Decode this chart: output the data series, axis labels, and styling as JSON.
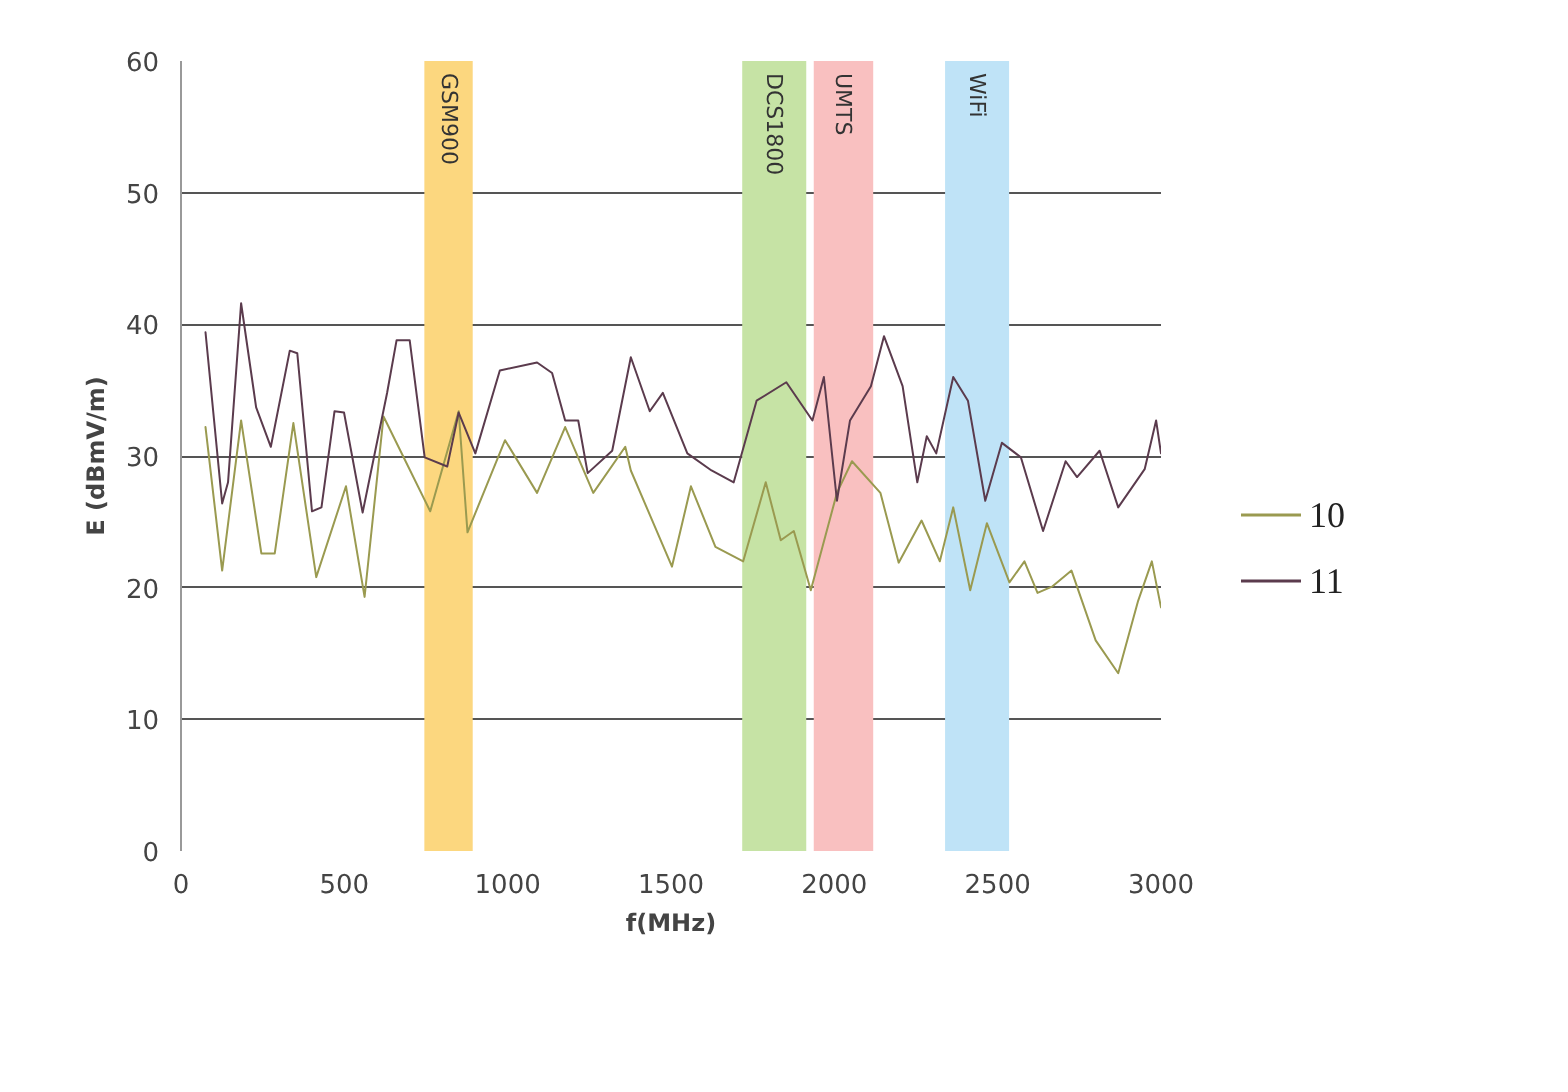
{
  "chart_data": {
    "type": "line",
    "xlabel": "f(MHz)",
    "ylabel": "E (dBmV/m)",
    "series": [
      {
        "name": "10",
        "color": "#9a9a50",
        "x": [
          75,
          126,
          184,
          246,
          287,
          344,
          414,
          505,
          562,
          620,
          763,
          850,
          877,
          992,
          1090,
          1176,
          1262,
          1360,
          1377,
          1503,
          1561,
          1636,
          1721,
          1790,
          1836,
          1876,
          1928,
          2008,
          2054,
          2141,
          2197,
          2267,
          2323,
          2364,
          2416,
          2467,
          2536,
          2582,
          2622,
          2668,
          2726,
          2800,
          2869,
          2930,
          2972,
          3000
        ],
        "values": [
          32.2,
          21.3,
          32.7,
          22.6,
          22.6,
          32.5,
          20.8,
          27.7,
          19.3,
          33,
          25.8,
          33.4,
          24.2,
          31.2,
          27.2,
          32.2,
          27.2,
          30.7,
          28.9,
          21.6,
          27.7,
          23.1,
          22,
          28,
          23.6,
          24.3,
          19.8,
          27.2,
          29.6,
          27.2,
          21.9,
          25.1,
          22,
          26.1,
          19.8,
          24.9,
          20.4,
          22,
          19.6,
          20.1,
          21.3,
          16,
          13.5,
          19,
          22,
          18.5
        ]
      },
      {
        "name": "11",
        "color": "#5b3b4d",
        "x": [
          75,
          126,
          144,
          184,
          230,
          275,
          333,
          356,
          401,
          430,
          470,
          499,
          556,
          631,
          660,
          700,
          746,
          815,
          850,
          901,
          976,
          1090,
          1136,
          1176,
          1216,
          1245,
          1320,
          1377,
          1435,
          1475,
          1550,
          1624,
          1692,
          1762,
          1853,
          1933,
          1968,
          2008,
          2048,
          2112,
          2152,
          2209,
          2254,
          2283,
          2312,
          2364,
          2409,
          2462,
          2513,
          2571,
          2639,
          2708,
          2743,
          2812,
          2869,
          2950,
          2985,
          3000
        ],
        "values": [
          39.4,
          26.4,
          28,
          41.6,
          33.7,
          30.7,
          38,
          37.8,
          25.8,
          26.1,
          33.4,
          33.3,
          25.7,
          34.8,
          38.8,
          38.8,
          29.9,
          29.2,
          33.3,
          30.2,
          36.5,
          37.1,
          36.3,
          32.7,
          32.7,
          28.7,
          30.4,
          37.5,
          33.4,
          34.8,
          30.2,
          28.9,
          28,
          34.2,
          35.6,
          32.7,
          36,
          26.6,
          32.7,
          35.3,
          39.1,
          35.3,
          28,
          31.5,
          30.2,
          36,
          34.2,
          26.6,
          31,
          29.9,
          24.3,
          29.6,
          28.4,
          30.4,
          26.1,
          29,
          32.7,
          30.2
        ]
      }
    ],
    "bands": [
      {
        "axis": "x",
        "from": 745,
        "to": 893,
        "label": "GSM900",
        "color": "#fcd77f"
      },
      {
        "axis": "x",
        "from": 1718,
        "to": 1914,
        "label": "DCS1800",
        "color": "#c6e3a5"
      },
      {
        "axis": "x",
        "from": 1937,
        "to": 2119,
        "label": "UMTS",
        "color": "#f9c0c0"
      },
      {
        "axis": "x",
        "from": 2339,
        "to": 2535,
        "label": "WiFi",
        "color": "#bfe3f7"
      }
    ],
    "xlim": [
      0,
      3000
    ],
    "xticks": [
      0,
      500,
      1000,
      1500,
      2000,
      2500,
      3000
    ],
    "ylim": [
      0,
      60
    ],
    "yticks": [
      0,
      10,
      20,
      30,
      40,
      50,
      60
    ],
    "grid": "y",
    "legend": "right",
    "marker": "none",
    "line_style": "solid"
  }
}
